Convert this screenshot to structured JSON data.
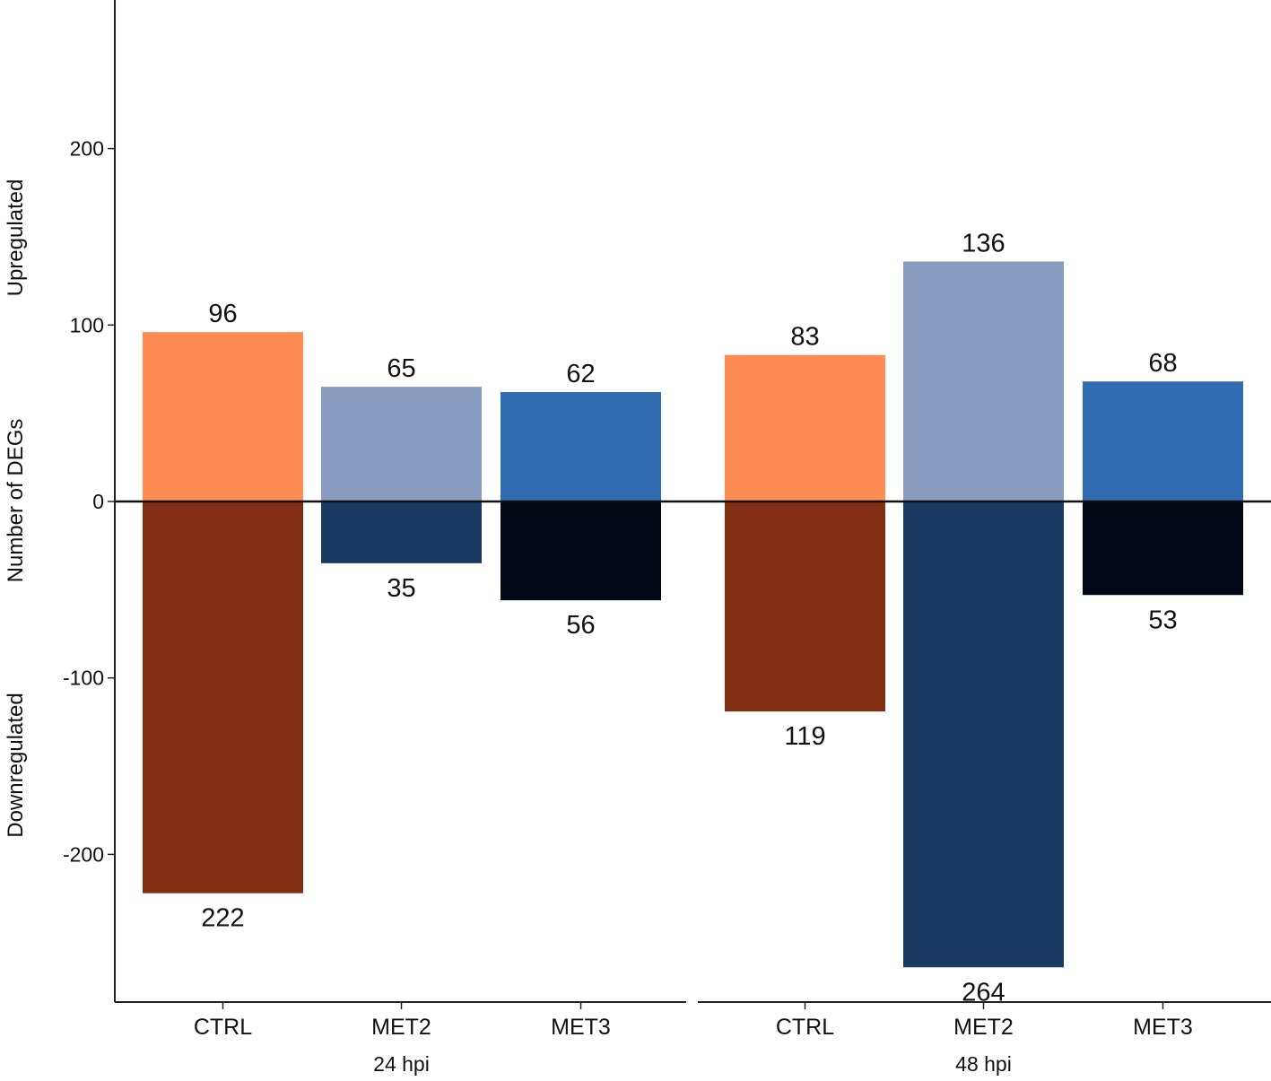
{
  "chart_data": {
    "type": "bar",
    "title": "",
    "ylabel": "Number of DEGs",
    "ylabel_up": "Upregulated",
    "ylabel_down": "Downregulated",
    "xlabel": "",
    "ylim": [
      -270,
      285
    ],
    "yticks": [
      200,
      100,
      0,
      -100,
      -200
    ],
    "grid": false,
    "groups": [
      {
        "label": "24 hpi",
        "categories": [
          {
            "name": "CTRL",
            "up": 96,
            "down": 222,
            "up_color": "#FF8C52",
            "down_color": "#812E12"
          },
          {
            "name": "MET2",
            "up": 65,
            "down": 35,
            "up_color": "#879CBF",
            "down_color": "#1A3961"
          },
          {
            "name": "MET3",
            "up": 62,
            "down": 56,
            "up_color": "#316BB0",
            "down_color": "#020814"
          }
        ]
      },
      {
        "label": "48 hpi",
        "categories": [
          {
            "name": "CTRL",
            "up": 83,
            "down": 119,
            "up_color": "#FF8C52",
            "down_color": "#812E12"
          },
          {
            "name": "MET2",
            "up": 136,
            "down": 264,
            "up_color": "#879CBF",
            "down_color": "#1A3961"
          },
          {
            "name": "MET3",
            "up": 68,
            "down": 53,
            "up_color": "#316BB0",
            "down_color": "#020814"
          }
        ]
      }
    ]
  }
}
